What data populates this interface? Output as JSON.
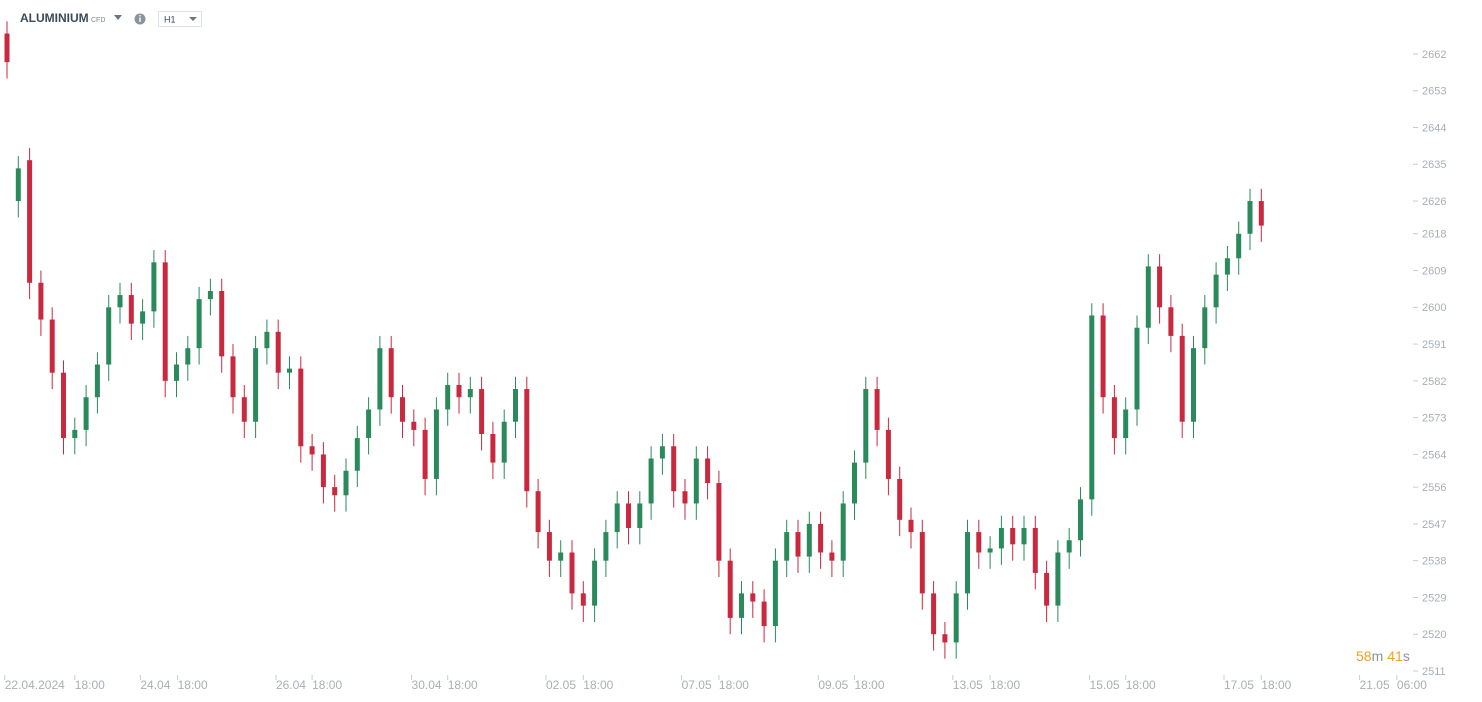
{
  "header": {
    "symbol": "ALUMINIUM",
    "instrument_type": "CFD",
    "timeframe": "H1"
  },
  "countdown": {
    "minutes": "58",
    "minutes_unit": "m",
    "seconds": "41",
    "seconds_unit": "s"
  },
  "chart_data": {
    "type": "candlestick",
    "up_color": "#2a8a5c",
    "down_color": "#c9293e",
    "open": [
      2667,
      2626,
      2636,
      2606,
      2597,
      2584,
      2568,
      2570,
      2578,
      2586,
      2600,
      2603,
      2596,
      2599,
      2611,
      2582,
      2586,
      2590,
      2602,
      2604,
      2588,
      2578,
      2572,
      2590,
      2594,
      2584,
      2585,
      2566,
      2564,
      2556,
      2554,
      2560,
      2568,
      2575,
      2590,
      2578,
      2572,
      2570,
      2558,
      2575,
      2581,
      2578,
      2580,
      2569,
      2562,
      2572,
      2580,
      2555,
      2545,
      2538,
      2540,
      2530,
      2527,
      2538,
      2545,
      2552,
      2546,
      2552,
      2563,
      2566,
      2555,
      2552,
      2563,
      2557,
      2538,
      2524,
      2530,
      2528,
      2522,
      2538,
      2545,
      2539,
      2547,
      2540,
      2538,
      2552,
      2562,
      2580,
      2570,
      2558,
      2548,
      2545,
      2530,
      2520,
      2518,
      2530,
      2545,
      2540,
      2541,
      2546,
      2542,
      2546,
      2535,
      2527,
      2540,
      2543,
      2553,
      2598,
      2578,
      2568,
      2575,
      2595,
      2610,
      2600,
      2593,
      2572,
      2590,
      2600,
      2608,
      2612,
      2618,
      2626
    ],
    "high": [
      2670,
      2637,
      2639,
      2609,
      2600,
      2587,
      2573,
      2581,
      2589,
      2603,
      2606,
      2606,
      2602,
      2614,
      2614,
      2589,
      2593,
      2605,
      2607,
      2607,
      2591,
      2581,
      2593,
      2597,
      2597,
      2588,
      2588,
      2569,
      2567,
      2559,
      2563,
      2571,
      2578,
      2593,
      2593,
      2581,
      2575,
      2573,
      2578,
      2584,
      2584,
      2583,
      2583,
      2572,
      2575,
      2583,
      2583,
      2558,
      2548,
      2543,
      2543,
      2533,
      2541,
      2548,
      2555,
      2555,
      2555,
      2566,
      2569,
      2569,
      2558,
      2566,
      2566,
      2560,
      2541,
      2533,
      2533,
      2531,
      2541,
      2548,
      2548,
      2550,
      2550,
      2543,
      2555,
      2565,
      2583,
      2583,
      2573,
      2561,
      2551,
      2548,
      2533,
      2523,
      2533,
      2548,
      2548,
      2544,
      2549,
      2549,
      2549,
      2549,
      2538,
      2543,
      2546,
      2556,
      2601,
      2601,
      2581,
      2578,
      2598,
      2613,
      2613,
      2603,
      2596,
      2593,
      2603,
      2611,
      2615,
      2621,
      2629,
      2629
    ],
    "low": [
      2656,
      2622,
      2602,
      2593,
      2580,
      2564,
      2564,
      2566,
      2574,
      2582,
      2596,
      2592,
      2592,
      2595,
      2578,
      2578,
      2582,
      2586,
      2598,
      2584,
      2574,
      2568,
      2568,
      2586,
      2580,
      2580,
      2562,
      2560,
      2552,
      2550,
      2550,
      2556,
      2564,
      2571,
      2574,
      2568,
      2566,
      2554,
      2554,
      2571,
      2574,
      2574,
      2565,
      2558,
      2558,
      2568,
      2551,
      2541,
      2534,
      2534,
      2526,
      2523,
      2523,
      2534,
      2541,
      2542,
      2542,
      2548,
      2559,
      2551,
      2548,
      2548,
      2553,
      2534,
      2520,
      2520,
      2524,
      2518,
      2518,
      2534,
      2535,
      2535,
      2536,
      2534,
      2534,
      2548,
      2558,
      2566,
      2554,
      2544,
      2541,
      2526,
      2516,
      2514,
      2514,
      2526,
      2536,
      2536,
      2537,
      2538,
      2538,
      2531,
      2523,
      2523,
      2536,
      2539,
      2549,
      2574,
      2564,
      2564,
      2571,
      2591,
      2596,
      2589,
      2568,
      2568,
      2586,
      2596,
      2604,
      2608,
      2614,
      2616
    ],
    "close": [
      2660,
      2634,
      2606,
      2597,
      2584,
      2568,
      2570,
      2578,
      2586,
      2600,
      2603,
      2596,
      2599,
      2611,
      2582,
      2586,
      2590,
      2602,
      2604,
      2588,
      2578,
      2572,
      2590,
      2594,
      2584,
      2585,
      2566,
      2564,
      2556,
      2554,
      2560,
      2568,
      2575,
      2590,
      2578,
      2572,
      2570,
      2558,
      2575,
      2581,
      2578,
      2580,
      2569,
      2562,
      2572,
      2580,
      2555,
      2545,
      2538,
      2540,
      2530,
      2527,
      2538,
      2545,
      2552,
      2546,
      2552,
      2563,
      2566,
      2555,
      2552,
      2563,
      2557,
      2538,
      2524,
      2530,
      2528,
      2522,
      2538,
      2545,
      2539,
      2547,
      2540,
      2538,
      2552,
      2562,
      2580,
      2570,
      2558,
      2548,
      2545,
      2530,
      2520,
      2518,
      2530,
      2545,
      2540,
      2541,
      2546,
      2542,
      2546,
      2535,
      2527,
      2540,
      2543,
      2553,
      2598,
      2578,
      2568,
      2575,
      2595,
      2610,
      2600,
      2593,
      2572,
      2590,
      2600,
      2608,
      2612,
      2618,
      2626,
      2620
    ],
    "xlim": [
      -0.62,
      124.16
    ],
    "xticks": [
      {
        "value": -0.2,
        "label": "22.04.2024"
      },
      {
        "value": 6,
        "label": "18:00"
      },
      {
        "value": 11.8,
        "label": "24.04"
      },
      {
        "value": 15.1,
        "label": "18:00"
      },
      {
        "value": 23.8,
        "label": "26.04"
      },
      {
        "value": 27,
        "label": "18:00"
      },
      {
        "value": 35.8,
        "label": "30.04"
      },
      {
        "value": 39,
        "label": "18:00"
      },
      {
        "value": 47.7,
        "label": "02.05"
      },
      {
        "value": 51,
        "label": "18:00"
      },
      {
        "value": 59.7,
        "label": "07.05"
      },
      {
        "value": 63,
        "label": "18:00"
      },
      {
        "value": 71.8,
        "label": "09.05"
      },
      {
        "value": 75,
        "label": "18:00"
      },
      {
        "value": 83.7,
        "label": "13.05"
      },
      {
        "value": 87,
        "label": "18:00"
      },
      {
        "value": 95.8,
        "label": "15.05"
      },
      {
        "value": 99,
        "label": "18:00"
      },
      {
        "value": 107.7,
        "label": "17.05"
      },
      {
        "value": 111,
        "label": "18:00"
      },
      {
        "value": 119.7,
        "label": "21.05"
      },
      {
        "value": 123,
        "label": "06:00"
      }
    ],
    "ylim": [
      2508.8,
      2675.2
    ],
    "yticks": [
      2511,
      2520,
      2529,
      2538,
      2547,
      2556,
      2564,
      2573,
      2582,
      2591,
      2600,
      2609,
      2618,
      2626,
      2635,
      2644,
      2653,
      2662
    ]
  }
}
